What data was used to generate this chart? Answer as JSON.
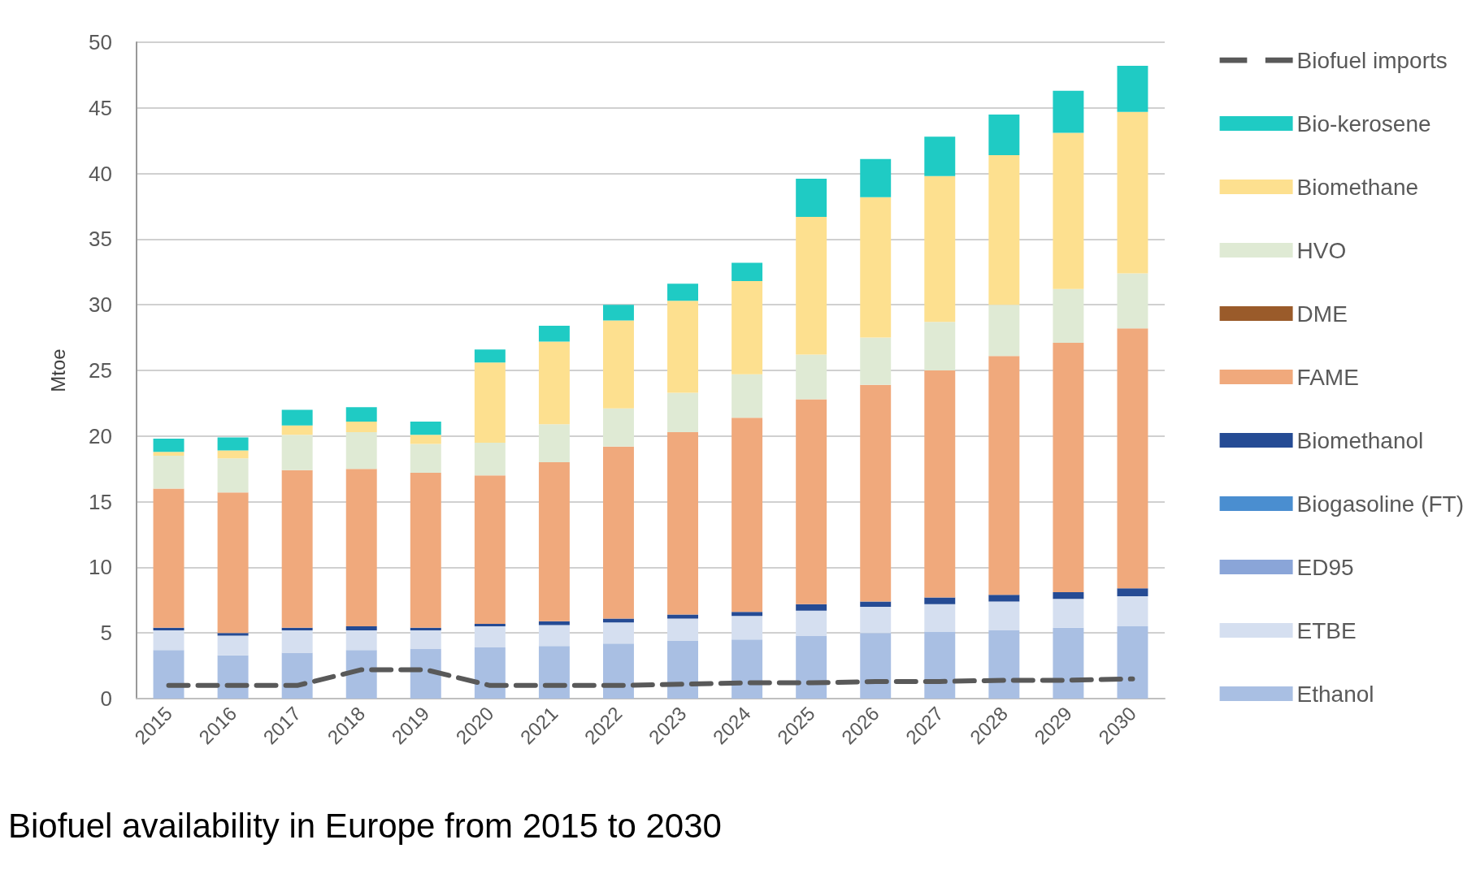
{
  "chart_data": {
    "type": "bar",
    "stacked": true,
    "ylabel": "Mtoe",
    "annotations": [
      "Biofuel availability in Europe from 2015 to 2030"
    ],
    "categories": [
      "2015",
      "2016",
      "2017",
      "2018",
      "2019",
      "2020",
      "2021",
      "2022",
      "2023",
      "2024",
      "2025",
      "2026",
      "2027",
      "2028",
      "2029",
      "2030"
    ],
    "ylim": [
      0,
      50
    ],
    "yticks": [
      0,
      5,
      10,
      15,
      20,
      25,
      30,
      35,
      40,
      45,
      50
    ],
    "grid": "y",
    "legend": "right",
    "series": [
      {
        "name": "Ethanol",
        "color": "#a9bfe3",
        "values": [
          3.7,
          3.3,
          3.5,
          3.7,
          3.8,
          3.9,
          4.0,
          4.2,
          4.4,
          4.5,
          4.8,
          5.0,
          5.1,
          5.2,
          5.4,
          5.5
        ]
      },
      {
        "name": "ETBE",
        "color": "#d5dff0",
        "values": [
          1.5,
          1.5,
          1.7,
          1.5,
          1.4,
          1.6,
          1.6,
          1.6,
          1.7,
          1.8,
          1.9,
          2.0,
          2.1,
          2.2,
          2.2,
          2.3
        ]
      },
      {
        "name": "ED95",
        "color": "#8aa5d8",
        "values": [
          0,
          0,
          0,
          0,
          0,
          0,
          0,
          0,
          0,
          0,
          0,
          0,
          0,
          0,
          0,
          0
        ]
      },
      {
        "name": "Biogasoline (FT)",
        "color": "#4a8ed0",
        "values": [
          0,
          0,
          0,
          0,
          0,
          0,
          0,
          0,
          0,
          0,
          0,
          0,
          0,
          0,
          0,
          0
        ]
      },
      {
        "name": "Biomethanol",
        "color": "#254b94",
        "values": [
          0.2,
          0.2,
          0.2,
          0.3,
          0.2,
          0.2,
          0.3,
          0.3,
          0.3,
          0.3,
          0.5,
          0.4,
          0.5,
          0.5,
          0.5,
          0.6
        ]
      },
      {
        "name": "FAME",
        "color": "#f0a97c",
        "values": [
          10.6,
          10.7,
          12.0,
          12.0,
          11.8,
          11.3,
          12.1,
          13.1,
          13.9,
          14.8,
          15.6,
          16.5,
          17.3,
          18.2,
          19.0,
          19.8
        ]
      },
      {
        "name": "DME",
        "color": "#9a5b2a",
        "values": [
          0,
          0,
          0,
          0,
          0,
          0,
          0,
          0,
          0,
          0,
          0,
          0,
          0,
          0,
          0,
          0
        ]
      },
      {
        "name": "HVO",
        "color": "#dfead4",
        "values": [
          2.5,
          2.6,
          2.7,
          2.8,
          2.2,
          2.5,
          2.9,
          2.9,
          3.0,
          3.3,
          3.4,
          3.6,
          3.7,
          3.9,
          4.1,
          4.2
        ]
      },
      {
        "name": "Biomethane",
        "color": "#fde08f",
        "values": [
          0.3,
          0.6,
          0.7,
          0.8,
          0.7,
          6.1,
          6.3,
          6.7,
          7.0,
          7.1,
          10.5,
          10.7,
          11.1,
          11.4,
          11.9,
          12.3
        ]
      },
      {
        "name": "Bio-kerosene",
        "color": "#1fcbc4",
        "values": [
          1.0,
          1.0,
          1.2,
          1.1,
          1.0,
          1.0,
          1.2,
          1.2,
          1.3,
          1.4,
          2.9,
          2.9,
          3.0,
          3.1,
          3.2,
          3.5
        ]
      },
      {
        "name": "Biofuel imports",
        "type": "line",
        "color": "#595959",
        "line_style": "dashed",
        "marker": "none",
        "values": [
          1.0,
          1.0,
          1.0,
          2.2,
          2.2,
          1.0,
          1.0,
          1.0,
          1.1,
          1.2,
          1.2,
          1.3,
          1.3,
          1.4,
          1.4,
          1.5
        ]
      }
    ]
  }
}
